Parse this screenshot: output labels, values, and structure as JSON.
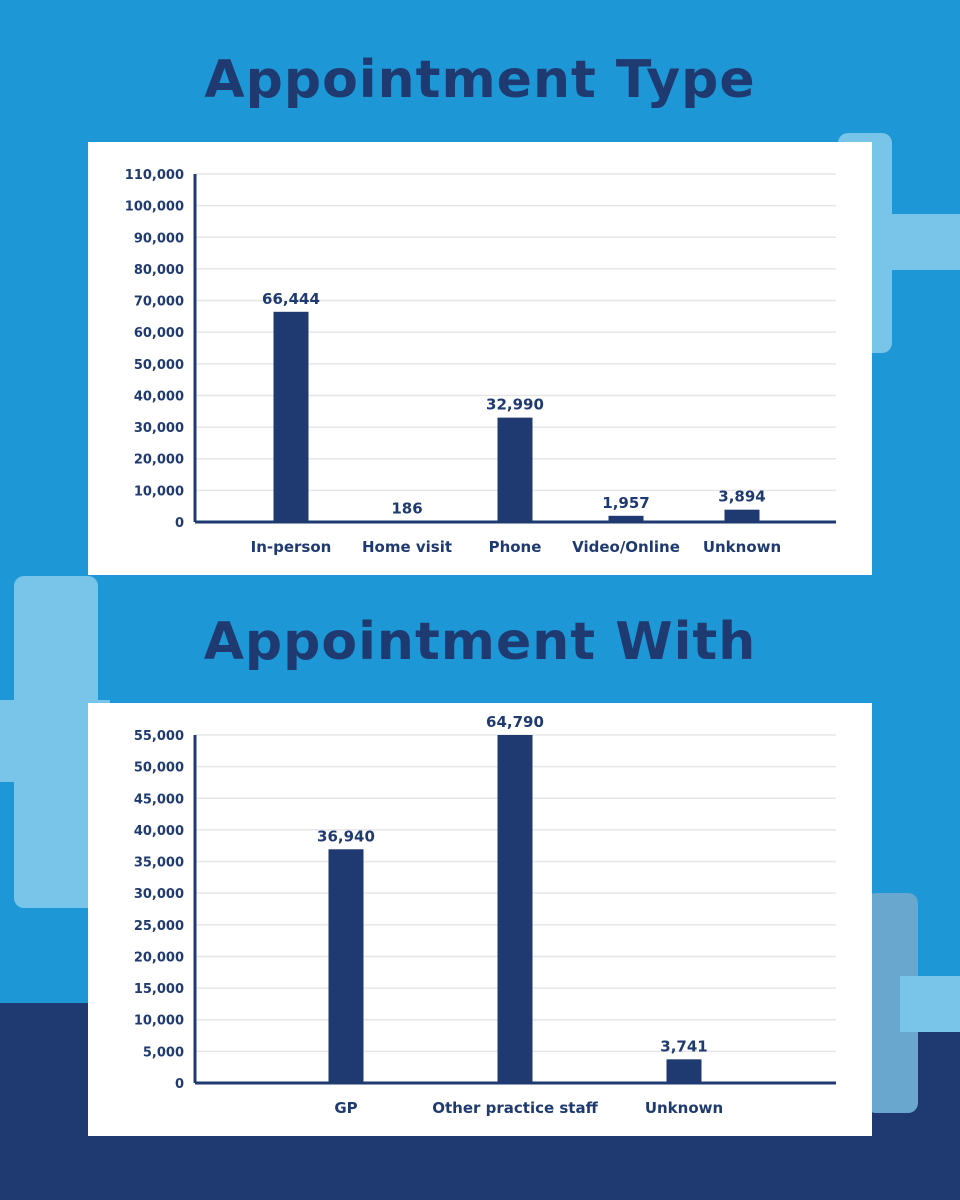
{
  "colors": {
    "background": "#1d97d6",
    "dark_band": "#1f3a70",
    "bar": "#1f3a70",
    "light_shape": "#79c4e9",
    "panel": "#ffffff"
  },
  "chart_data": [
    {
      "type": "bar",
      "title": "Appointment Type",
      "categories": [
        "In-person",
        "Home visit",
        "Phone",
        "Video/Online",
        "Unknown"
      ],
      "values": [
        66444,
        186,
        32990,
        1957,
        3894
      ],
      "value_labels": [
        "66,444",
        "186",
        "32,990",
        "1,957",
        "3,894"
      ],
      "ylim": [
        0,
        110000
      ],
      "yticks": [
        0,
        10000,
        20000,
        30000,
        40000,
        50000,
        60000,
        70000,
        80000,
        90000,
        100000,
        110000
      ],
      "ytick_labels": [
        "0",
        "10,000",
        "20,000",
        "30,000",
        "40,000",
        "50,000",
        "60,000",
        "70,000",
        "80,000",
        "90,000",
        "100,000",
        "110,000"
      ],
      "grid": true,
      "xlabel": "",
      "ylabel": ""
    },
    {
      "type": "bar",
      "title": "Appointment With",
      "categories": [
        "GP",
        "Other practice staff",
        "Unknown"
      ],
      "values": [
        36940,
        64790,
        3741
      ],
      "value_labels": [
        "36,940",
        "64,790",
        "3,741"
      ],
      "ylim": [
        0,
        55000
      ],
      "yticks": [
        0,
        5000,
        10000,
        15000,
        20000,
        25000,
        30000,
        35000,
        40000,
        45000,
        50000,
        55000
      ],
      "ytick_labels": [
        "0",
        "5,000",
        "10,000",
        "15,000",
        "20,000",
        "25,000",
        "30,000",
        "35,000",
        "40,000",
        "45,000",
        "50,000",
        "55,000"
      ],
      "grid": true,
      "xlabel": "",
      "ylabel": ""
    }
  ]
}
